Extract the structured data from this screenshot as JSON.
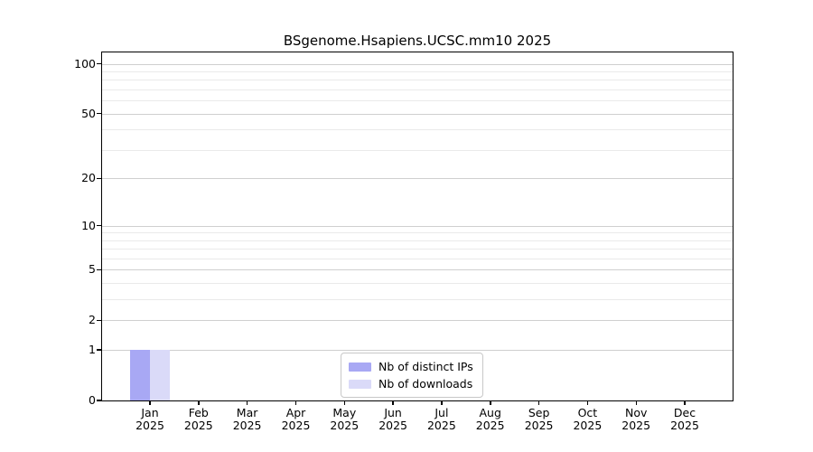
{
  "figure": {
    "background_color": "#ffffff"
  },
  "chart_data": {
    "type": "bar",
    "title": "BSgenome.Hsapiens.UCSC.mm10 2025",
    "xlabel": "",
    "ylabel": "",
    "x_months": [
      "Jan",
      "Feb",
      "Mar",
      "Apr",
      "May",
      "Jun",
      "Jul",
      "Aug",
      "Sep",
      "Oct",
      "Nov",
      "Dec"
    ],
    "x_year": "2025",
    "series": [
      {
        "name": "Nb of distinct IPs",
        "color": "#a8a8f4",
        "values": [
          1,
          0,
          0,
          0,
          0,
          0,
          0,
          0,
          0,
          0,
          0,
          0
        ]
      },
      {
        "name": "Nb of downloads",
        "color": "#dadaf8",
        "values": [
          1,
          0,
          0,
          0,
          0,
          0,
          0,
          0,
          0,
          0,
          0,
          0
        ]
      }
    ],
    "y_scale": "log1p",
    "ylim": [
      0,
      117
    ],
    "y_ticks": [
      0,
      1,
      2,
      5,
      10,
      20,
      50,
      100
    ],
    "y_minor_ticks": [
      3,
      4,
      6,
      7,
      8,
      9,
      30,
      40,
      60,
      70,
      80,
      90
    ],
    "grid": true,
    "legend_position": "lower center",
    "colors": {
      "axis": "#000000",
      "major_grid": "#cfcfcf",
      "minor_grid": "#eaeaea",
      "legend_border": "#c8c8c8"
    }
  }
}
